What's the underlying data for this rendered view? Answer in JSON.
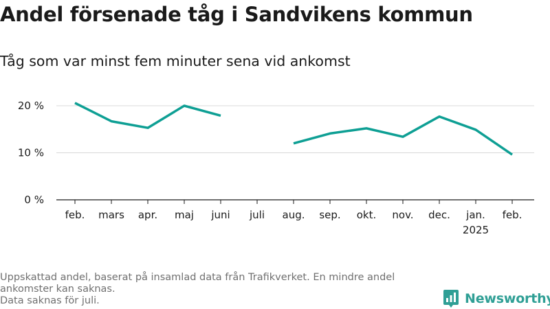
{
  "title": "Andel försenade tåg i Sandvikens kommun",
  "subtitle": "Tåg som var minst fem minuter sena vid ankomst",
  "footnote": {
    "line1": "Uppskattad andel, baserat på insamlad data från Trafikverket. En mindre andel ankomster kan saknas.",
    "line2": "Data saknas för juli."
  },
  "brand": {
    "name": "Newsworthy",
    "color": "#2f9f95",
    "icon": "bar-chart-pin-icon"
  },
  "colors": {
    "line": "#0e9f94",
    "grid": "#d8d8d8",
    "axis": "#1a1a1a"
  },
  "chart_data": {
    "type": "line",
    "categories": [
      "feb.",
      "mars",
      "apr.",
      "maj",
      "juni",
      "juli",
      "aug.",
      "sep.",
      "okt.",
      "nov.",
      "dec.",
      "jan.",
      "feb."
    ],
    "category_sublabels": [
      "",
      "",
      "",
      "",
      "",
      "",
      "",
      "",
      "",
      "",
      "",
      "2025",
      ""
    ],
    "series": [
      {
        "values": [
          20.6,
          16.7,
          15.3,
          20.0,
          17.9,
          null,
          12.0,
          14.1,
          15.2,
          13.4,
          17.7,
          14.9,
          9.6
        ]
      }
    ],
    "ylim": [
      0,
      20
    ],
    "yticks": [
      0,
      10,
      20
    ],
    "ytick_labels": [
      "0 %",
      "10 %",
      "20 %"
    ],
    "grid": true
  }
}
